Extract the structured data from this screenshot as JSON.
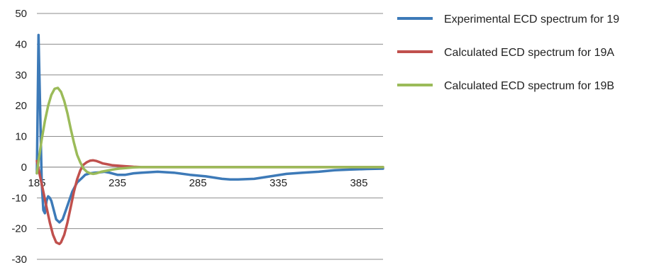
{
  "chart_data": {
    "type": "line",
    "title": "",
    "xlabel": "",
    "ylabel": "",
    "xlim": [
      185,
      400
    ],
    "ylim": [
      -30,
      50
    ],
    "x_ticks": [
      185,
      235,
      285,
      335,
      385
    ],
    "y_ticks": [
      50,
      40,
      30,
      20,
      10,
      0,
      -10,
      -20,
      -30
    ],
    "grid": "horizontal",
    "legend_position": "right",
    "series": [
      {
        "name": "Experimental ECD spectrum for 19",
        "color": "#3d7ab8",
        "x": [
          185,
          186,
          187,
          188,
          189,
          190,
          191,
          192,
          193,
          194,
          195,
          197,
          199,
          201,
          203,
          205,
          207,
          210,
          213,
          215,
          218,
          221,
          224,
          227,
          230,
          235,
          240,
          245,
          250,
          260,
          270,
          280,
          290,
          300,
          305,
          310,
          320,
          330,
          340,
          350,
          360,
          370,
          380,
          390,
          400
        ],
        "y": [
          -2,
          43,
          20,
          -5,
          -14,
          -15,
          -11,
          -9.5,
          -10,
          -11,
          -13,
          -17,
          -18,
          -17,
          -14,
          -11,
          -8,
          -5,
          -3.5,
          -2.5,
          -2,
          -1.8,
          -1.7,
          -1.5,
          -1.8,
          -2.5,
          -2.5,
          -2,
          -1.8,
          -1.5,
          -1.8,
          -2.5,
          -3,
          -3.8,
          -4,
          -4,
          -3.8,
          -3,
          -2.2,
          -1.8,
          -1.5,
          -1,
          -0.8,
          -0.6,
          -0.5
        ]
      },
      {
        "name": "Calculated ECD spectrum for 19A",
        "color": "#c0504d",
        "x": [
          185,
          187,
          189,
          191,
          193,
          195,
          197,
          199,
          200,
          202,
          204,
          206,
          208,
          210,
          212,
          214,
          216,
          218,
          220,
          222,
          224,
          226,
          228,
          230,
          232,
          235,
          240,
          245,
          250,
          260,
          280,
          300,
          350,
          400
        ],
        "y": [
          2,
          -3,
          -8,
          -13,
          -18,
          -22,
          -24.5,
          -25,
          -24.5,
          -22,
          -18,
          -13,
          -8,
          -4,
          -1,
          0.8,
          1.6,
          2.1,
          2.2,
          2,
          1.6,
          1.2,
          1,
          0.8,
          0.6,
          0.5,
          0.3,
          0.1,
          0,
          0,
          0,
          0,
          0,
          0
        ]
      },
      {
        "name": "Calculated ECD spectrum for 19B",
        "color": "#9bbb59",
        "x": [
          185,
          186,
          188,
          190,
          192,
          194,
          196,
          198,
          200,
          202,
          204,
          206,
          208,
          210,
          212,
          214,
          216,
          218,
          220,
          222,
          225,
          228,
          232,
          236,
          240,
          245,
          250,
          260,
          280,
          300,
          350,
          400
        ],
        "y": [
          -2,
          2,
          9,
          15,
          20,
          23.5,
          25.5,
          25.8,
          24.5,
          21.5,
          17.5,
          12.5,
          8,
          4,
          1.5,
          -0.5,
          -1.5,
          -2,
          -2.2,
          -2,
          -1.5,
          -1.2,
          -0.8,
          -0.5,
          -0.3,
          -0.1,
          0,
          0,
          0,
          0,
          0,
          0
        ]
      }
    ]
  }
}
